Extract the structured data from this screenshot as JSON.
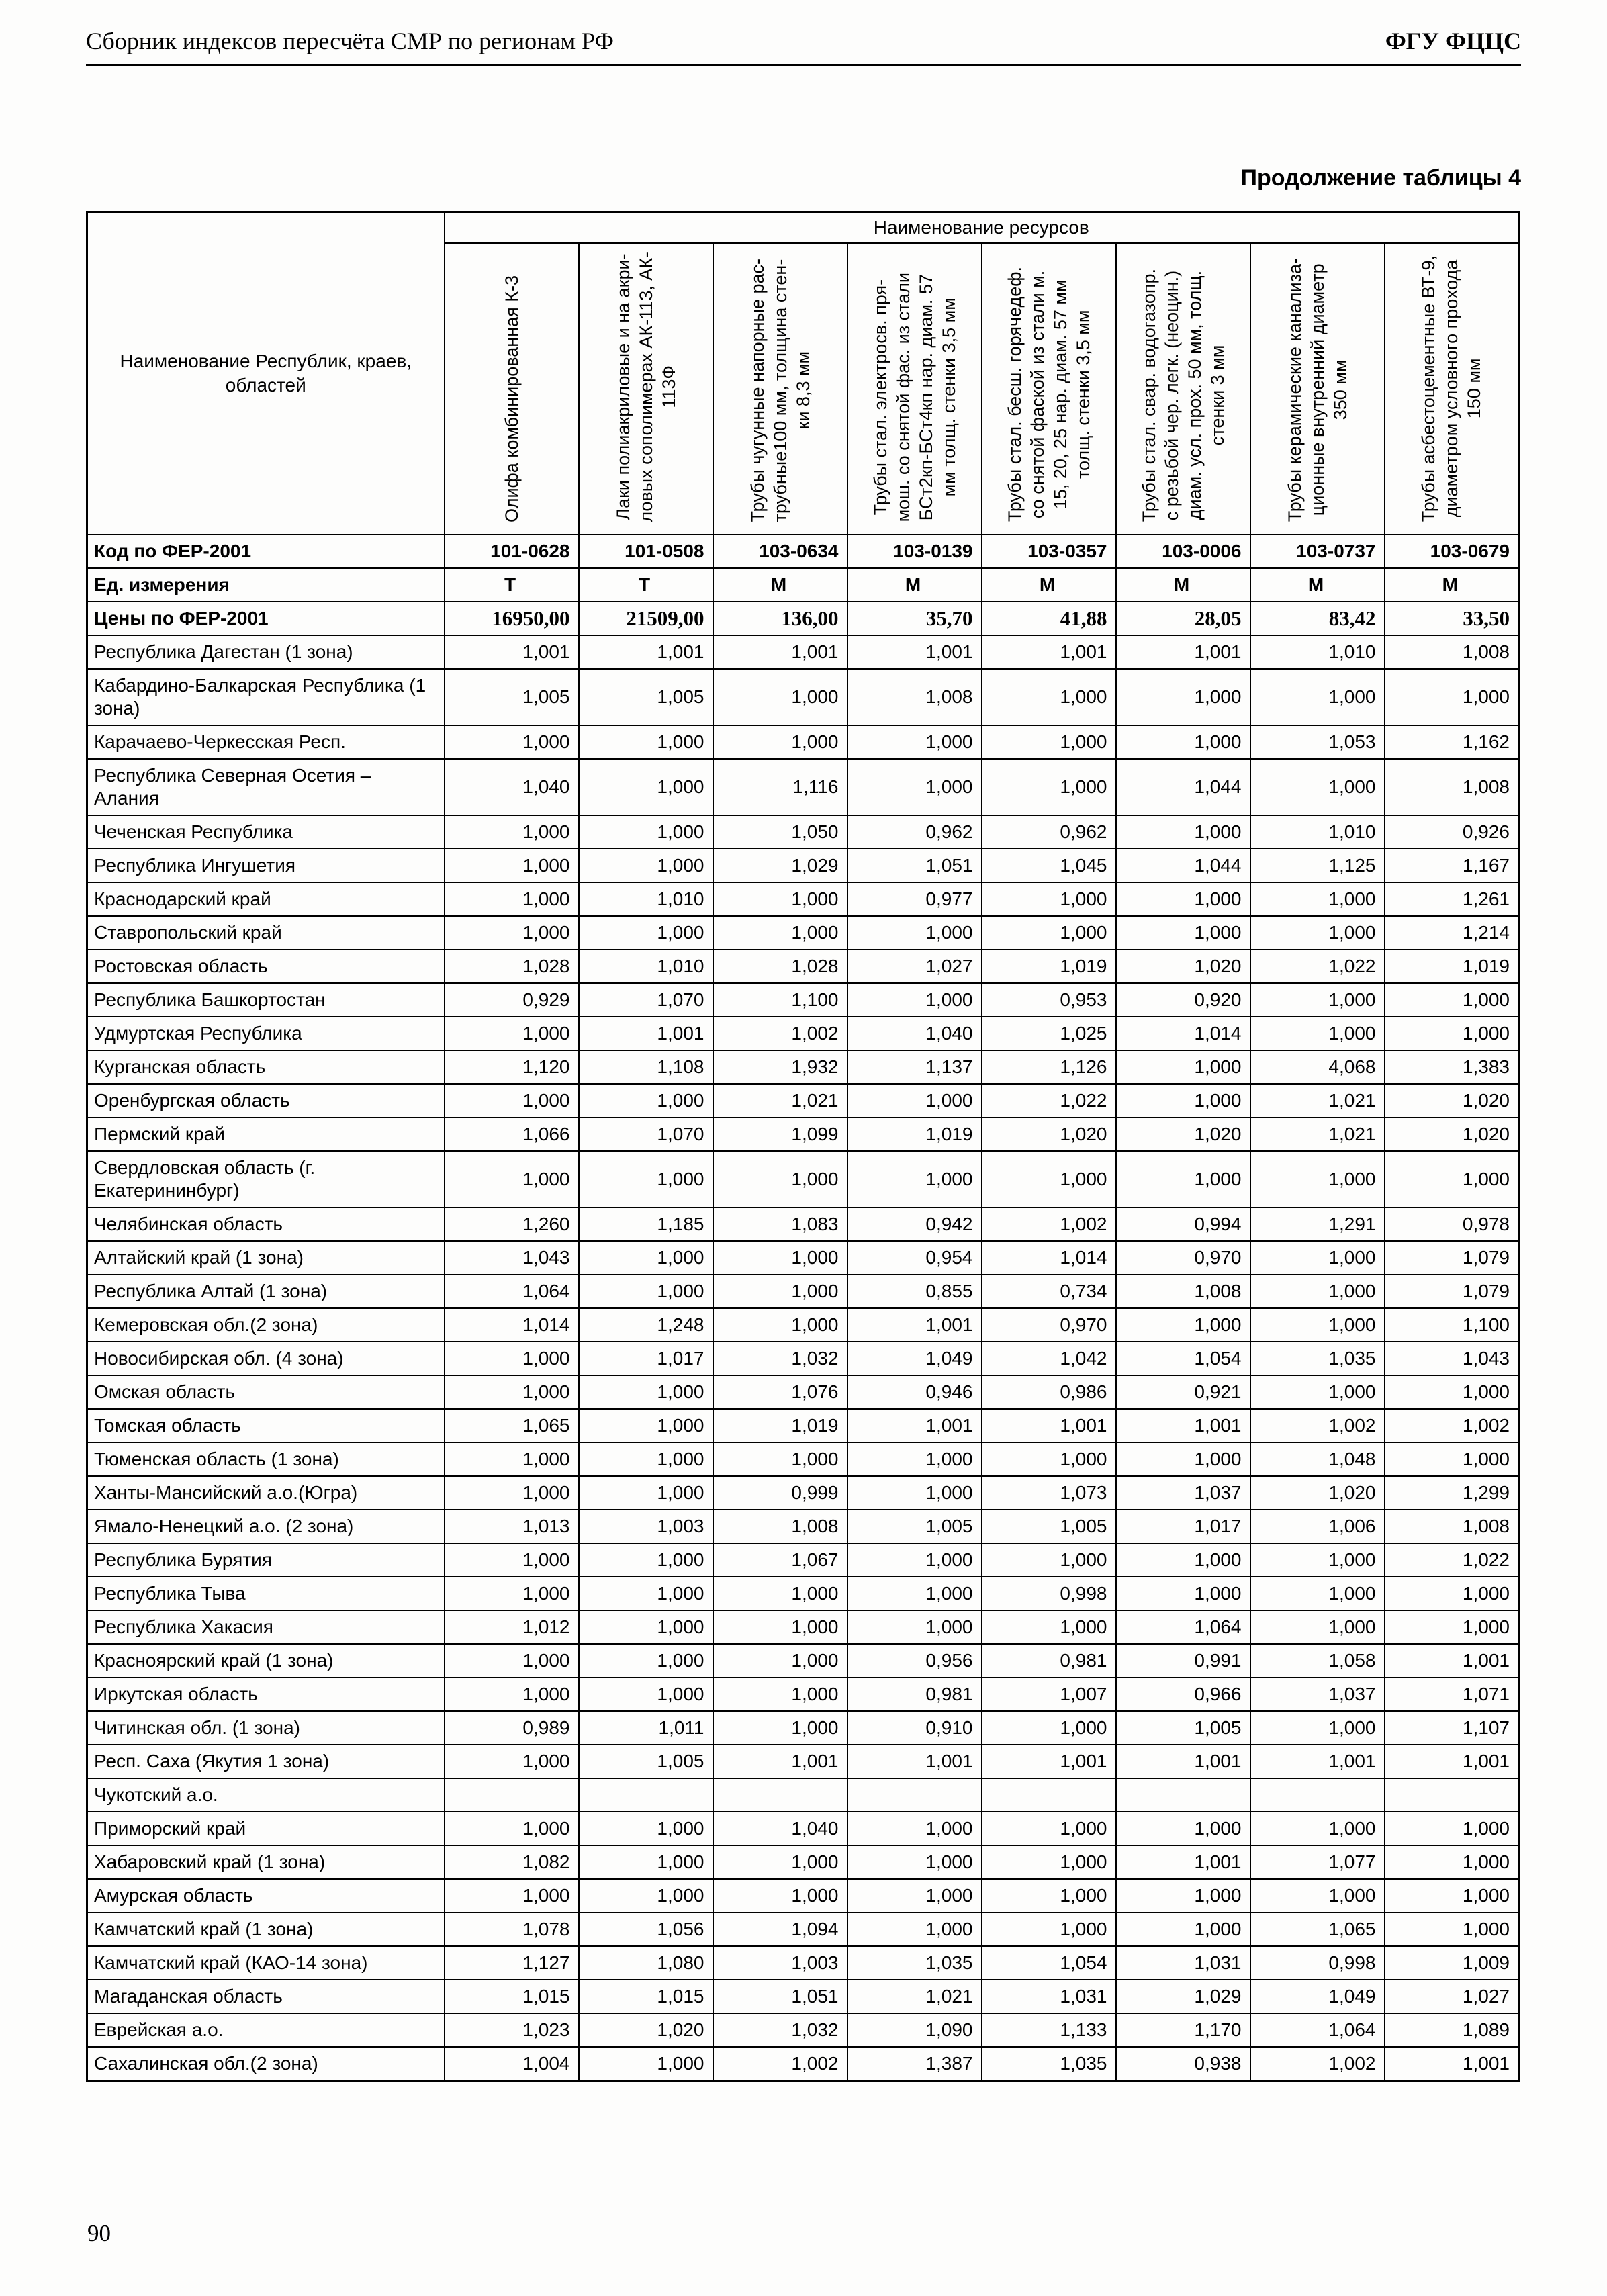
{
  "page_header": {
    "left": "Сборник индексов пересчёта СМР по регионам РФ",
    "right": "ФГУ ФЦЦС"
  },
  "table_caption": "Продолжение таблицы 4",
  "page_number": "90",
  "table": {
    "region_col_header": "Наименование Республик, краев, областей",
    "resources_header": "Наименование ресурсов",
    "columns": [
      {
        "lines": [
          "Олифа комбинированная К-3"
        ]
      },
      {
        "lines": [
          "Лаки полиакриловые и на акри-",
          "ловых сополимерах АК-113, АК-",
          "113Ф"
        ]
      },
      {
        "lines": [
          "Трубы чугунные напорные рас-",
          "трубные100 мм, толщина стен-",
          "ки 8,3 мм"
        ]
      },
      {
        "lines": [
          "Трубы стал. электросв. пря-",
          "мош. со снятой фас. из стали",
          "БСт2кп-БСт4кп нар. диам. 57",
          "мм толщ. стенки 3,5 мм"
        ]
      },
      {
        "lines": [
          "Трубы стал. бесш. горячедеф.",
          "со снятой фаской из стали м.",
          "15, 20, 25 нар. диам. 57 мм",
          "толщ. стенки 3,5 мм"
        ]
      },
      {
        "lines": [
          "Трубы стал. свар. водогазопр.",
          "с резьбой чер. легк. (неоцин.)",
          "диам. усл. прох. 50 мм, толщ.",
          "стенки 3 мм"
        ]
      },
      {
        "lines": [
          "Трубы керамические канализа-",
          "ционные внутренний диаметр",
          "350 мм"
        ]
      },
      {
        "lines": [
          "Трубы асбестоцементные ВТ-9,",
          "диаметром условного прохода",
          "150 мм"
        ]
      }
    ],
    "code_row": {
      "label": "Код по ФЕР-2001",
      "values": [
        "101-0628",
        "101-0508",
        "103-0634",
        "103-0139",
        "103-0357",
        "103-0006",
        "103-0737",
        "103-0679"
      ]
    },
    "unit_row": {
      "label": "Ед. измерения",
      "values": [
        "Т",
        "Т",
        "М",
        "М",
        "М",
        "М",
        "М",
        "М"
      ]
    },
    "price_row": {
      "label": "Цены по ФЕР-2001",
      "values": [
        "16950,00",
        "21509,00",
        "136,00",
        "35,70",
        "41,88",
        "28,05",
        "83,42",
        "33,50"
      ]
    },
    "rows": [
      {
        "region": "Республика Дагестан (1 зона)",
        "values": [
          "1,001",
          "1,001",
          "1,001",
          "1,001",
          "1,001",
          "1,001",
          "1,010",
          "1,008"
        ]
      },
      {
        "region": "Кабардино-Балкарская Республика (1 зона)",
        "values": [
          "1,005",
          "1,005",
          "1,000",
          "1,008",
          "1,000",
          "1,000",
          "1,000",
          "1,000"
        ]
      },
      {
        "region": "Карачаево-Черкесская Респ.",
        "values": [
          "1,000",
          "1,000",
          "1,000",
          "1,000",
          "1,000",
          "1,000",
          "1,053",
          "1,162"
        ]
      },
      {
        "region": "Республика Северная Осетия – Алания",
        "values": [
          "1,040",
          "1,000",
          "1,116",
          "1,000",
          "1,000",
          "1,044",
          "1,000",
          "1,008"
        ]
      },
      {
        "region": "Чеченская Республика",
        "values": [
          "1,000",
          "1,000",
          "1,050",
          "0,962",
          "0,962",
          "1,000",
          "1,010",
          "0,926"
        ]
      },
      {
        "region": "Республика Ингушетия",
        "values": [
          "1,000",
          "1,000",
          "1,029",
          "1,051",
          "1,045",
          "1,044",
          "1,125",
          "1,167"
        ]
      },
      {
        "region": "Краснодарский край",
        "values": [
          "1,000",
          "1,010",
          "1,000",
          "0,977",
          "1,000",
          "1,000",
          "1,000",
          "1,261"
        ]
      },
      {
        "region": "Ставропольский край",
        "values": [
          "1,000",
          "1,000",
          "1,000",
          "1,000",
          "1,000",
          "1,000",
          "1,000",
          "1,214"
        ]
      },
      {
        "region": "Ростовская область",
        "values": [
          "1,028",
          "1,010",
          "1,028",
          "1,027",
          "1,019",
          "1,020",
          "1,022",
          "1,019"
        ]
      },
      {
        "region": "Республика Башкортостан",
        "values": [
          "0,929",
          "1,070",
          "1,100",
          "1,000",
          "0,953",
          "0,920",
          "1,000",
          "1,000"
        ]
      },
      {
        "region": "Удмуртская Республика",
        "values": [
          "1,000",
          "1,001",
          "1,002",
          "1,040",
          "1,025",
          "1,014",
          "1,000",
          "1,000"
        ]
      },
      {
        "region": "Курганская область",
        "values": [
          "1,120",
          "1,108",
          "1,932",
          "1,137",
          "1,126",
          "1,000",
          "4,068",
          "1,383"
        ]
      },
      {
        "region": "Оренбургская область",
        "values": [
          "1,000",
          "1,000",
          "1,021",
          "1,000",
          "1,022",
          "1,000",
          "1,021",
          "1,020"
        ]
      },
      {
        "region": "Пермский край",
        "values": [
          "1,066",
          "1,070",
          "1,099",
          "1,019",
          "1,020",
          "1,020",
          "1,021",
          "1,020"
        ]
      },
      {
        "region": "Свердловская область (г. Екатерининбург)",
        "values": [
          "1,000",
          "1,000",
          "1,000",
          "1,000",
          "1,000",
          "1,000",
          "1,000",
          "1,000"
        ]
      },
      {
        "region": "Челябинская область",
        "values": [
          "1,260",
          "1,185",
          "1,083",
          "0,942",
          "1,002",
          "0,994",
          "1,291",
          "0,978"
        ]
      },
      {
        "region": "Алтайский край (1 зона)",
        "values": [
          "1,043",
          "1,000",
          "1,000",
          "0,954",
          "1,014",
          "0,970",
          "1,000",
          "1,079"
        ]
      },
      {
        "region": "Республика Алтай (1 зона)",
        "values": [
          "1,064",
          "1,000",
          "1,000",
          "0,855",
          "0,734",
          "1,008",
          "1,000",
          "1,079"
        ]
      },
      {
        "region": "Кемеровская обл.(2 зона)",
        "values": [
          "1,014",
          "1,248",
          "1,000",
          "1,001",
          "0,970",
          "1,000",
          "1,000",
          "1,100"
        ]
      },
      {
        "region": "Новосибирская обл. (4 зона)",
        "values": [
          "1,000",
          "1,017",
          "1,032",
          "1,049",
          "1,042",
          "1,054",
          "1,035",
          "1,043"
        ]
      },
      {
        "region": "Омская область",
        "values": [
          "1,000",
          "1,000",
          "1,076",
          "0,946",
          "0,986",
          "0,921",
          "1,000",
          "1,000"
        ]
      },
      {
        "region": "Томская область",
        "values": [
          "1,065",
          "1,000",
          "1,019",
          "1,001",
          "1,001",
          "1,001",
          "1,002",
          "1,002"
        ]
      },
      {
        "region": "Тюменская область (1 зона)",
        "values": [
          "1,000",
          "1,000",
          "1,000",
          "1,000",
          "1,000",
          "1,000",
          "1,048",
          "1,000"
        ]
      },
      {
        "region": "Ханты-Мансийский а.о.(Югра)",
        "values": [
          "1,000",
          "1,000",
          "0,999",
          "1,000",
          "1,073",
          "1,037",
          "1,020",
          "1,299"
        ]
      },
      {
        "region": "Ямало-Ненецкий а.о. (2 зона)",
        "values": [
          "1,013",
          "1,003",
          "1,008",
          "1,005",
          "1,005",
          "1,017",
          "1,006",
          "1,008"
        ]
      },
      {
        "region": "Республика Бурятия",
        "values": [
          "1,000",
          "1,000",
          "1,067",
          "1,000",
          "1,000",
          "1,000",
          "1,000",
          "1,022"
        ]
      },
      {
        "region": "Республика Тыва",
        "values": [
          "1,000",
          "1,000",
          "1,000",
          "1,000",
          "0,998",
          "1,000",
          "1,000",
          "1,000"
        ]
      },
      {
        "region": "Республика Хакасия",
        "values": [
          "1,012",
          "1,000",
          "1,000",
          "1,000",
          "1,000",
          "1,064",
          "1,000",
          "1,000"
        ]
      },
      {
        "region": "Красноярский край (1 зона)",
        "values": [
          "1,000",
          "1,000",
          "1,000",
          "0,956",
          "0,981",
          "0,991",
          "1,058",
          "1,001"
        ]
      },
      {
        "region": "Иркутская область",
        "values": [
          "1,000",
          "1,000",
          "1,000",
          "0,981",
          "1,007",
          "0,966",
          "1,037",
          "1,071"
        ]
      },
      {
        "region": "Читинская обл. (1 зона)",
        "values": [
          "0,989",
          "1,011",
          "1,000",
          "0,910",
          "1,000",
          "1,005",
          "1,000",
          "1,107"
        ]
      },
      {
        "region": "Респ. Саха (Якутия 1 зона)",
        "values": [
          "1,000",
          "1,005",
          "1,001",
          "1,001",
          "1,001",
          "1,001",
          "1,001",
          "1,001"
        ]
      },
      {
        "region": "Чукотский а.о.",
        "values": [
          "",
          "",
          "",
          "",
          "",
          "",
          "",
          ""
        ]
      },
      {
        "region": "Приморский край",
        "values": [
          "1,000",
          "1,000",
          "1,040",
          "1,000",
          "1,000",
          "1,000",
          "1,000",
          "1,000"
        ]
      },
      {
        "region": "Хабаровский край (1 зона)",
        "values": [
          "1,082",
          "1,000",
          "1,000",
          "1,000",
          "1,000",
          "1,001",
          "1,077",
          "1,000"
        ]
      },
      {
        "region": "Амурская область",
        "values": [
          "1,000",
          "1,000",
          "1,000",
          "1,000",
          "1,000",
          "1,000",
          "1,000",
          "1,000"
        ]
      },
      {
        "region": "Камчатский край (1 зона)",
        "values": [
          "1,078",
          "1,056",
          "1,094",
          "1,000",
          "1,000",
          "1,000",
          "1,065",
          "1,000"
        ]
      },
      {
        "region": "Камчатский край (КАО-14 зона)",
        "values": [
          "1,127",
          "1,080",
          "1,003",
          "1,035",
          "1,054",
          "1,031",
          "0,998",
          "1,009"
        ]
      },
      {
        "region": "Магаданская область",
        "values": [
          "1,015",
          "1,015",
          "1,051",
          "1,021",
          "1,031",
          "1,029",
          "1,049",
          "1,027"
        ]
      },
      {
        "region": "Еврейская а.о.",
        "values": [
          "1,023",
          "1,020",
          "1,032",
          "1,090",
          "1,133",
          "1,170",
          "1,064",
          "1,089"
        ]
      },
      {
        "region": "Сахалинская обл.(2 зона)",
        "values": [
          "1,004",
          "1,000",
          "1,002",
          "1,387",
          "1,035",
          "0,938",
          "1,002",
          "1,001"
        ]
      }
    ]
  }
}
